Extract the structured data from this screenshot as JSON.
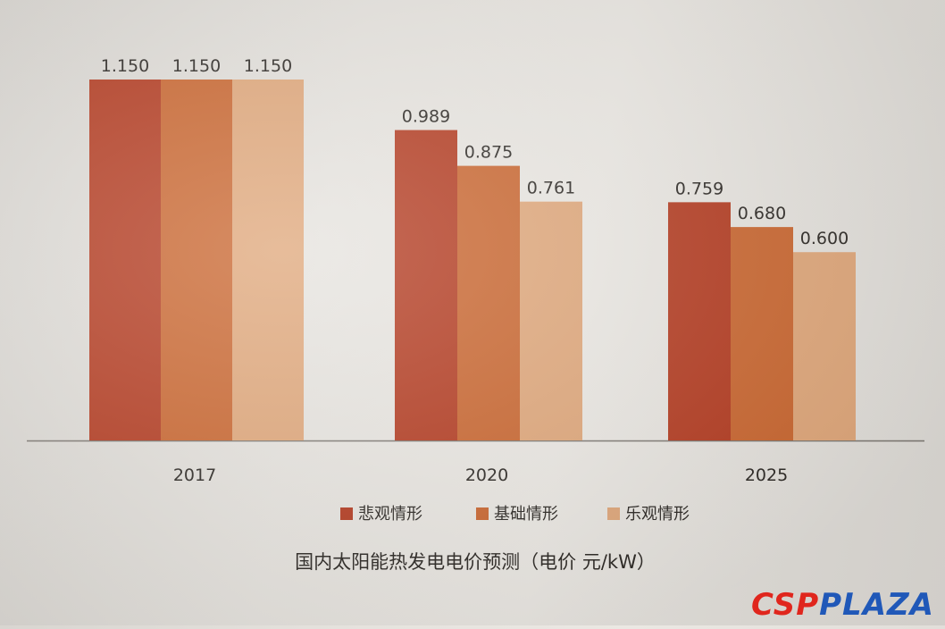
{
  "chart_data": {
    "type": "bar",
    "title": "国内太阳能热发电电价预测（电价 元/kW）",
    "categories": [
      "2017",
      "2020",
      "2025"
    ],
    "series": [
      {
        "name": "悲观情形",
        "color": "#b33a1f",
        "values": [
          1.15,
          0.989,
          0.759
        ],
        "labels": [
          "1.150",
          "0.989",
          "0.759"
        ]
      },
      {
        "name": "基础情形",
        "color": "#c9652e",
        "values": [
          1.15,
          0.875,
          0.68
        ],
        "labels": [
          "1.150",
          "0.875",
          "0.680"
        ]
      },
      {
        "name": "乐观情形",
        "color": "#dfa679",
        "values": [
          1.15,
          0.761,
          0.6
        ],
        "labels": [
          "1.150",
          "0.761",
          "0.600"
        ]
      }
    ],
    "ylim": [
      0,
      1.15
    ],
    "grid": false,
    "legend": "bottom"
  },
  "watermark": {
    "part1": "CSP",
    "part2": "PLAZA"
  }
}
